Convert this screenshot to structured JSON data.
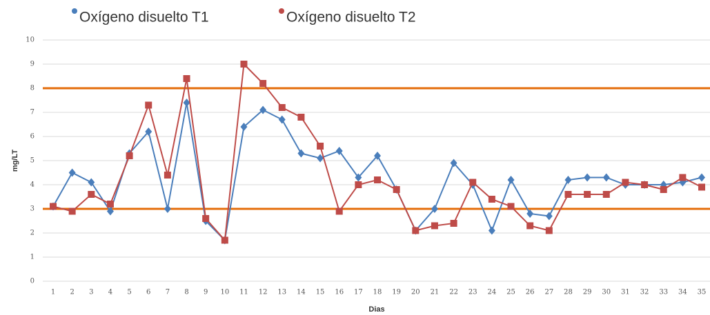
{
  "chart_data": {
    "type": "line",
    "categories": [
      "1",
      "2",
      "3",
      "4",
      "5",
      "6",
      "7",
      "8",
      "9",
      "10",
      "11",
      "12",
      "13",
      "14",
      "15",
      "16",
      "17",
      "18",
      "19",
      "20",
      "21",
      "22",
      "23",
      "24",
      "25",
      "26",
      "27",
      "28",
      "29",
      "30",
      "31",
      "32",
      "33",
      "34",
      "35"
    ],
    "series": [
      {
        "name": "Oxígeno disuelto T1",
        "color": "#4a7ebb",
        "marker": "diamond",
        "values": [
          3.1,
          4.5,
          4.1,
          2.9,
          5.3,
          6.2,
          3.0,
          7.4,
          2.5,
          1.7,
          6.4,
          7.1,
          6.7,
          5.3,
          5.1,
          5.4,
          4.3,
          5.2,
          3.8,
          2.1,
          3.0,
          4.9,
          4.0,
          2.1,
          4.2,
          2.8,
          2.7,
          4.2,
          4.3,
          4.3,
          4.0,
          4.0,
          4.0,
          4.1,
          4.3
        ]
      },
      {
        "name": "Oxígeno disuelto T2",
        "color": "#be4b48",
        "marker": "square",
        "values": [
          3.1,
          2.9,
          3.6,
          3.2,
          5.2,
          7.3,
          4.4,
          8.4,
          2.6,
          1.7,
          9.0,
          8.2,
          7.2,
          6.8,
          5.6,
          2.9,
          4.0,
          4.2,
          3.8,
          2.1,
          2.3,
          2.4,
          4.1,
          3.4,
          3.1,
          2.3,
          2.1,
          3.6,
          3.6,
          3.6,
          4.1,
          4.0,
          3.8,
          4.3,
          3.9
        ]
      }
    ],
    "reference_lines": [
      8,
      3
    ],
    "reference_color": "#e46c0a",
    "x_label": "Dias",
    "y_label": "mg/LT",
    "ylim": [
      0,
      10
    ],
    "yticks": [
      0,
      1,
      2,
      3,
      4,
      5,
      6,
      7,
      8,
      9,
      10
    ],
    "grid": true,
    "legend": "top"
  }
}
